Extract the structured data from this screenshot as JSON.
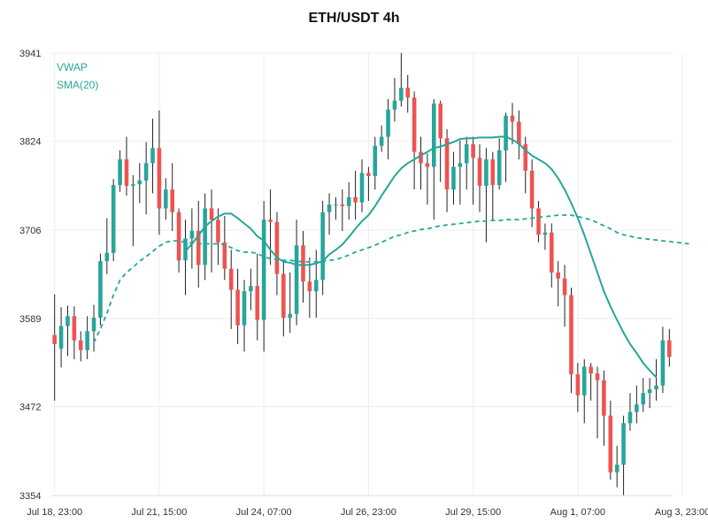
{
  "chart_data": {
    "type": "candlestick",
    "title": "ETH/USDT 4h",
    "xlabel": "",
    "ylabel": "",
    "ylim": [
      3354,
      3941
    ],
    "yticks": [
      3354,
      3472,
      3589,
      3706,
      3824,
      3941
    ],
    "xticks": [
      {
        "index": 0,
        "label": "Jul 18, 23:00"
      },
      {
        "index": 16,
        "label": "Jul 21, 15:00"
      },
      {
        "index": 32,
        "label": "Jul 24, 07:00"
      },
      {
        "index": 48,
        "label": "Jul 26, 23:00"
      },
      {
        "index": 64,
        "label": "Jul 29, 15:00"
      },
      {
        "index": 80,
        "label": "Aug 1, 07:00"
      },
      {
        "index": 96,
        "label": "Aug 3, 23:00"
      }
    ],
    "grid": true,
    "legend": {
      "position": "top-left",
      "entries": [
        "VWAP",
        "SMA(20)"
      ]
    },
    "colors": {
      "up": "#26a69a",
      "down": "#ef5350",
      "wick": "#222222",
      "vwap": "#26a69a",
      "sma": "#26a69a",
      "grid": "#eeeeee"
    },
    "candles": [
      [
        3567,
        3555,
        3621,
        3480
      ],
      [
        3549,
        3579,
        3604,
        3524
      ],
      [
        3579,
        3592,
        3606,
        3539
      ],
      [
        3592,
        3560,
        3605,
        3535
      ],
      [
        3560,
        3547,
        3572,
        3532
      ],
      [
        3547,
        3572,
        3592,
        3535
      ],
      [
        3572,
        3590,
        3607,
        3545
      ],
      [
        3590,
        3665,
        3675,
        3580
      ],
      [
        3665,
        3676,
        3722,
        3648
      ],
      [
        3676,
        3766,
        3774,
        3665
      ],
      [
        3766,
        3800,
        3812,
        3757
      ],
      [
        3800,
        3765,
        3830,
        3752
      ],
      [
        3765,
        3767,
        3779,
        3685
      ],
      [
        3767,
        3772,
        3795,
        3742
      ],
      [
        3772,
        3795,
        3823,
        3727
      ],
      [
        3795,
        3815,
        3854,
        3755
      ],
      [
        3815,
        3735,
        3865,
        3700
      ],
      [
        3735,
        3760,
        3775,
        3720
      ],
      [
        3760,
        3730,
        3795,
        3705
      ],
      [
        3730,
        3666,
        3735,
        3650
      ],
      [
        3666,
        3695,
        3720,
        3620
      ],
      [
        3695,
        3705,
        3735,
        3655
      ],
      [
        3705,
        3660,
        3745,
        3630
      ],
      [
        3660,
        3735,
        3755,
        3640
      ],
      [
        3735,
        3720,
        3760,
        3650
      ],
      [
        3720,
        3690,
        3735,
        3660
      ],
      [
        3690,
        3655,
        3725,
        3640
      ],
      [
        3655,
        3627,
        3680,
        3575
      ],
      [
        3627,
        3580,
        3655,
        3555
      ],
      [
        3580,
        3625,
        3640,
        3545
      ],
      [
        3625,
        3632,
        3655,
        3600
      ],
      [
        3632,
        3587,
        3675,
        3560
      ],
      [
        3587,
        3720,
        3745,
        3545
      ],
      [
        3720,
        3717,
        3760,
        3660
      ],
      [
        3717,
        3648,
        3730,
        3620
      ],
      [
        3648,
        3590,
        3665,
        3565
      ],
      [
        3590,
        3595,
        3650,
        3570
      ],
      [
        3595,
        3686,
        3720,
        3580
      ],
      [
        3686,
        3638,
        3705,
        3610
      ],
      [
        3638,
        3625,
        3670,
        3590
      ],
      [
        3625,
        3640,
        3680,
        3590
      ],
      [
        3640,
        3730,
        3745,
        3620
      ],
      [
        3730,
        3740,
        3755,
        3700
      ],
      [
        3740,
        3740,
        3750,
        3720
      ],
      [
        3740,
        3738,
        3760,
        3705
      ],
      [
        3738,
        3750,
        3770,
        3720
      ],
      [
        3750,
        3743,
        3785,
        3720
      ],
      [
        3743,
        3782,
        3800,
        3730
      ],
      [
        3782,
        3778,
        3790,
        3745
      ],
      [
        3778,
        3818,
        3830,
        3760
      ],
      [
        3818,
        3830,
        3845,
        3810
      ],
      [
        3830,
        3866,
        3880,
        3800
      ],
      [
        3866,
        3878,
        3908,
        3850
      ],
      [
        3878,
        3895,
        3941,
        3870
      ],
      [
        3895,
        3882,
        3912,
        3862
      ],
      [
        3882,
        3810,
        3890,
        3760
      ],
      [
        3810,
        3795,
        3830,
        3760
      ],
      [
        3795,
        3790,
        3808,
        3740
      ],
      [
        3790,
        3874,
        3880,
        3720
      ],
      [
        3874,
        3828,
        3878,
        3770
      ],
      [
        3828,
        3760,
        3840,
        3730
      ],
      [
        3760,
        3790,
        3810,
        3740
      ],
      [
        3790,
        3795,
        3825,
        3740
      ],
      [
        3795,
        3820,
        3830,
        3760
      ],
      [
        3820,
        3802,
        3830,
        3740
      ],
      [
        3802,
        3765,
        3820,
        3730
      ],
      [
        3765,
        3800,
        3815,
        3690
      ],
      [
        3800,
        3766,
        3810,
        3720
      ],
      [
        3766,
        3812,
        3828,
        3760
      ],
      [
        3812,
        3858,
        3862,
        3770
      ],
      [
        3858,
        3850,
        3875,
        3820
      ],
      [
        3850,
        3820,
        3865,
        3800
      ],
      [
        3820,
        3785,
        3830,
        3755
      ],
      [
        3785,
        3735,
        3800,
        3710
      ],
      [
        3735,
        3700,
        3745,
        3690
      ],
      [
        3700,
        3703,
        3715,
        3680
      ],
      [
        3703,
        3650,
        3715,
        3630
      ],
      [
        3650,
        3642,
        3665,
        3605
      ],
      [
        3642,
        3620,
        3660,
        3578
      ],
      [
        3620,
        3515,
        3630,
        3490
      ],
      [
        3515,
        3487,
        3530,
        3465
      ],
      [
        3487,
        3525,
        3535,
        3450
      ],
      [
        3525,
        3516,
        3530,
        3480
      ],
      [
        3516,
        3507,
        3525,
        3430
      ],
      [
        3507,
        3460,
        3520,
        3420
      ],
      [
        3460,
        3385,
        3480,
        3375
      ],
      [
        3385,
        3395,
        3420,
        3365
      ],
      [
        3395,
        3450,
        3460,
        3354
      ],
      [
        3450,
        3465,
        3490,
        3440
      ],
      [
        3465,
        3475,
        3500,
        3450
      ],
      [
        3475,
        3490,
        3510,
        3465
      ],
      [
        3490,
        3495,
        3510,
        3470
      ],
      [
        3495,
        3500,
        3535,
        3480
      ],
      [
        3500,
        3560,
        3578,
        3490
      ],
      [
        3560,
        3538,
        3575,
        3525
      ]
    ],
    "vwap": [
      [
        6,
        3557
      ],
      [
        7,
        3575
      ],
      [
        8,
        3596
      ],
      [
        9,
        3620
      ],
      [
        10,
        3640
      ],
      [
        11,
        3650
      ],
      [
        12,
        3657
      ],
      [
        13,
        3665
      ],
      [
        14,
        3671
      ],
      [
        15,
        3678
      ],
      [
        16,
        3685
      ],
      [
        17,
        3690
      ],
      [
        18,
        3692
      ],
      [
        19,
        3692
      ],
      [
        20,
        3690
      ],
      [
        21,
        3689
      ],
      [
        22,
        3688
      ],
      [
        23,
        3688
      ],
      [
        24,
        3688
      ],
      [
        25,
        3688
      ],
      [
        26,
        3687
      ],
      [
        27,
        3683
      ],
      [
        28,
        3679
      ],
      [
        29,
        3677
      ],
      [
        30,
        3677
      ],
      [
        31,
        3675
      ],
      [
        32,
        3671
      ],
      [
        33,
        3668
      ],
      [
        34,
        3667
      ],
      [
        35,
        3666
      ],
      [
        36,
        3666
      ],
      [
        37,
        3665
      ],
      [
        38,
        3664
      ],
      [
        39,
        3664
      ],
      [
        40,
        3664
      ],
      [
        41,
        3665
      ],
      [
        42,
        3666
      ],
      [
        43,
        3667
      ],
      [
        44,
        3670
      ],
      [
        45,
        3673
      ],
      [
        46,
        3677
      ],
      [
        47,
        3680
      ],
      [
        48,
        3683
      ],
      [
        49,
        3686
      ],
      [
        50,
        3690
      ],
      [
        51,
        3694
      ],
      [
        52,
        3698
      ],
      [
        53,
        3700
      ],
      [
        54,
        3703
      ],
      [
        55,
        3705
      ],
      [
        56,
        3707
      ],
      [
        57,
        3708
      ],
      [
        58,
        3710
      ],
      [
        59,
        3712
      ],
      [
        60,
        3713
      ],
      [
        61,
        3714
      ],
      [
        62,
        3715
      ],
      [
        63,
        3716
      ],
      [
        64,
        3717
      ],
      [
        65,
        3718
      ],
      [
        66,
        3718
      ],
      [
        67,
        3719
      ],
      [
        68,
        3719
      ],
      [
        69,
        3720
      ],
      [
        70,
        3720
      ],
      [
        71,
        3720
      ],
      [
        72,
        3721
      ],
      [
        73,
        3722
      ],
      [
        74,
        3723
      ],
      [
        75,
        3724
      ],
      [
        76,
        3725
      ],
      [
        77,
        3726
      ],
      [
        78,
        3726
      ],
      [
        79,
        3726
      ],
      [
        80,
        3724
      ],
      [
        81,
        3722
      ],
      [
        82,
        3720
      ],
      [
        83,
        3716
      ],
      [
        84,
        3712
      ],
      [
        85,
        3708
      ],
      [
        86,
        3703
      ],
      [
        87,
        3700
      ],
      [
        88,
        3698
      ],
      [
        89,
        3696
      ],
      [
        90,
        3695
      ],
      [
        91,
        3694
      ],
      [
        92,
        3693
      ],
      [
        93,
        3692
      ],
      [
        94,
        3691
      ],
      [
        95,
        3690
      ],
      [
        96,
        3689
      ],
      [
        97,
        3688
      ]
    ],
    "sma": [
      [
        20,
        3678
      ],
      [
        21,
        3688
      ],
      [
        22,
        3699
      ],
      [
        23,
        3711
      ],
      [
        24,
        3718
      ],
      [
        25,
        3724
      ],
      [
        26,
        3728
      ],
      [
        27,
        3728
      ],
      [
        28,
        3722
      ],
      [
        29,
        3715
      ],
      [
        30,
        3708
      ],
      [
        31,
        3698
      ],
      [
        32,
        3692
      ],
      [
        33,
        3680
      ],
      [
        34,
        3670
      ],
      [
        35,
        3664
      ],
      [
        36,
        3663
      ],
      [
        37,
        3660
      ],
      [
        38,
        3660
      ],
      [
        39,
        3660
      ],
      [
        40,
        3662
      ],
      [
        41,
        3665
      ],
      [
        42,
        3674
      ],
      [
        43,
        3680
      ],
      [
        44,
        3687
      ],
      [
        45,
        3697
      ],
      [
        46,
        3708
      ],
      [
        47,
        3718
      ],
      [
        48,
        3726
      ],
      [
        49,
        3738
      ],
      [
        50,
        3752
      ],
      [
        51,
        3765
      ],
      [
        52,
        3778
      ],
      [
        53,
        3788
      ],
      [
        54,
        3795
      ],
      [
        55,
        3800
      ],
      [
        56,
        3805
      ],
      [
        57,
        3810
      ],
      [
        58,
        3815
      ],
      [
        59,
        3817
      ],
      [
        60,
        3820
      ],
      [
        61,
        3823
      ],
      [
        62,
        3827
      ],
      [
        63,
        3828
      ],
      [
        64,
        3828
      ],
      [
        65,
        3829
      ],
      [
        66,
        3829
      ],
      [
        67,
        3829
      ],
      [
        68,
        3830
      ],
      [
        69,
        3830
      ],
      [
        70,
        3826
      ],
      [
        71,
        3821
      ],
      [
        72,
        3812
      ],
      [
        73,
        3805
      ],
      [
        74,
        3800
      ],
      [
        75,
        3795
      ],
      [
        76,
        3787
      ],
      [
        77,
        3775
      ],
      [
        78,
        3760
      ],
      [
        79,
        3742
      ],
      [
        80,
        3722
      ],
      [
        81,
        3700
      ],
      [
        82,
        3675
      ],
      [
        83,
        3650
      ],
      [
        84,
        3625
      ],
      [
        85,
        3605
      ],
      [
        86,
        3587
      ],
      [
        87,
        3570
      ],
      [
        88,
        3555
      ],
      [
        89,
        3543
      ],
      [
        90,
        3530
      ],
      [
        91,
        3520
      ],
      [
        92,
        3511
      ]
    ]
  }
}
